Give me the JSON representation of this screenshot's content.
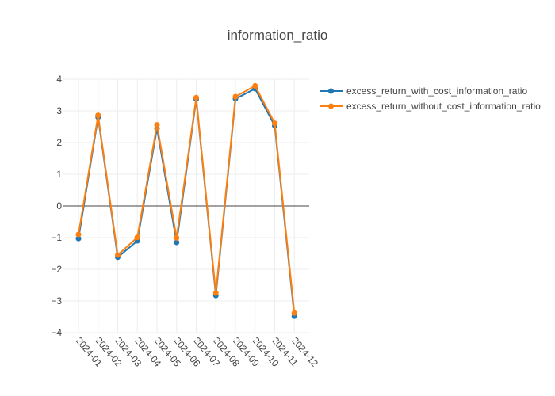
{
  "chart_data": {
    "type": "line",
    "title": "information_ratio",
    "xlabel": "",
    "ylabel": "",
    "categories": [
      "2024-01",
      "2024-02",
      "2024-03",
      "2024-04",
      "2024-05",
      "2024-06",
      "2024-07",
      "2024-08",
      "2024-09",
      "2024-10",
      "2024-11",
      "2024-12"
    ],
    "ylim": [
      -4,
      4
    ],
    "yticks": [
      4,
      3,
      2,
      1,
      0,
      -1,
      -2,
      -3,
      -4
    ],
    "grid": true,
    "zero_line": true,
    "legend_position": "top-right",
    "series": [
      {
        "name": "excess_return_with_cost_information_ratio",
        "color": "#1f77b4",
        "values": [
          -1.03,
          2.8,
          -1.62,
          -1.1,
          2.45,
          -1.15,
          3.37,
          -2.83,
          3.38,
          3.7,
          2.53,
          -3.48
        ]
      },
      {
        "name": "excess_return_without_cost_information_ratio",
        "color": "#ff7f0e",
        "values": [
          -0.9,
          2.86,
          -1.55,
          -0.99,
          2.56,
          -1.01,
          3.42,
          -2.75,
          3.45,
          3.79,
          2.61,
          -3.38
        ]
      }
    ]
  }
}
